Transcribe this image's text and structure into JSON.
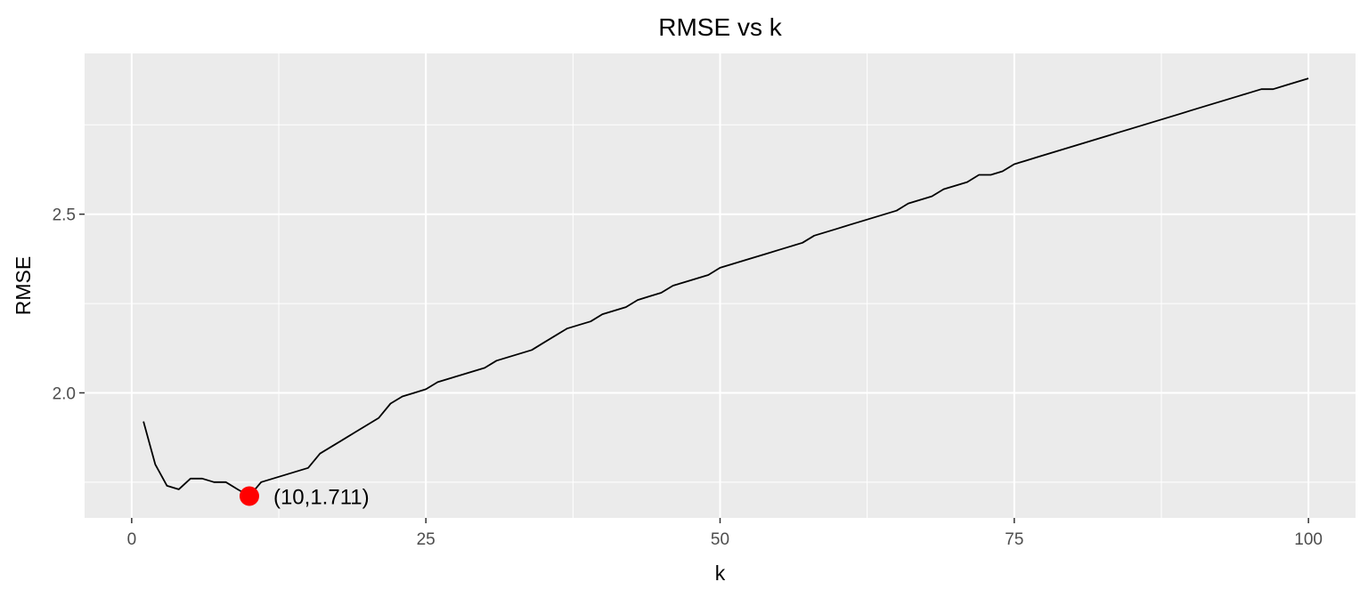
{
  "chart_data": {
    "type": "line",
    "title": "RMSE vs k",
    "xlabel": "k",
    "ylabel": "RMSE",
    "xlim": [
      -4,
      104
    ],
    "ylim": [
      1.65,
      2.95
    ],
    "x_ticks": [
      0,
      25,
      50,
      75,
      100
    ],
    "x_tick_labels": [
      "0",
      "25",
      "50",
      "75",
      "100"
    ],
    "y_ticks": [
      2.0,
      2.5
    ],
    "y_tick_labels": [
      "2.0",
      "2.5"
    ],
    "grid": true,
    "legend": "none",
    "colors": {
      "panel": "#ebebeb",
      "grid": "#ffffff",
      "line": "#000000",
      "highlight": "#ff0000"
    },
    "series": [
      {
        "x": [
          1,
          2,
          3,
          4,
          5,
          6,
          7,
          8,
          9,
          10,
          11,
          12,
          13,
          14,
          15,
          16,
          17,
          18,
          19,
          20,
          21,
          22,
          23,
          24,
          25,
          26,
          27,
          28,
          29,
          30,
          31,
          32,
          33,
          34,
          35,
          36,
          37,
          38,
          39,
          40,
          41,
          42,
          43,
          44,
          45,
          46,
          47,
          48,
          49,
          50,
          51,
          52,
          53,
          54,
          55,
          56,
          57,
          58,
          59,
          60,
          61,
          62,
          63,
          64,
          65,
          66,
          67,
          68,
          69,
          70,
          71,
          72,
          73,
          74,
          75,
          76,
          77,
          78,
          79,
          80,
          81,
          82,
          83,
          84,
          85,
          86,
          87,
          88,
          89,
          90,
          91,
          92,
          93,
          94,
          95,
          96,
          97,
          98,
          99,
          100
        ],
        "values": [
          1.92,
          1.8,
          1.74,
          1.73,
          1.76,
          1.76,
          1.75,
          1.75,
          1.73,
          1.711,
          1.75,
          1.76,
          1.77,
          1.78,
          1.79,
          1.83,
          1.85,
          1.87,
          1.89,
          1.91,
          1.93,
          1.97,
          1.99,
          2.0,
          2.01,
          2.03,
          2.04,
          2.05,
          2.06,
          2.07,
          2.09,
          2.1,
          2.11,
          2.12,
          2.14,
          2.16,
          2.18,
          2.19,
          2.2,
          2.22,
          2.23,
          2.24,
          2.26,
          2.27,
          2.28,
          2.3,
          2.31,
          2.32,
          2.33,
          2.35,
          2.36,
          2.37,
          2.38,
          2.39,
          2.4,
          2.41,
          2.42,
          2.44,
          2.45,
          2.46,
          2.47,
          2.48,
          2.49,
          2.5,
          2.51,
          2.53,
          2.54,
          2.55,
          2.57,
          2.58,
          2.59,
          2.61,
          2.61,
          2.62,
          2.64,
          2.65,
          2.66,
          2.67,
          2.68,
          2.69,
          2.7,
          2.71,
          2.72,
          2.73,
          2.74,
          2.75,
          2.76,
          2.77,
          2.78,
          2.79,
          2.8,
          2.81,
          2.82,
          2.83,
          2.84,
          2.85,
          2.85,
          2.86,
          2.87,
          2.88
        ]
      }
    ],
    "highlight_point": {
      "x": 10,
      "y": 1.711
    },
    "annotation": "(10,1.711)"
  }
}
